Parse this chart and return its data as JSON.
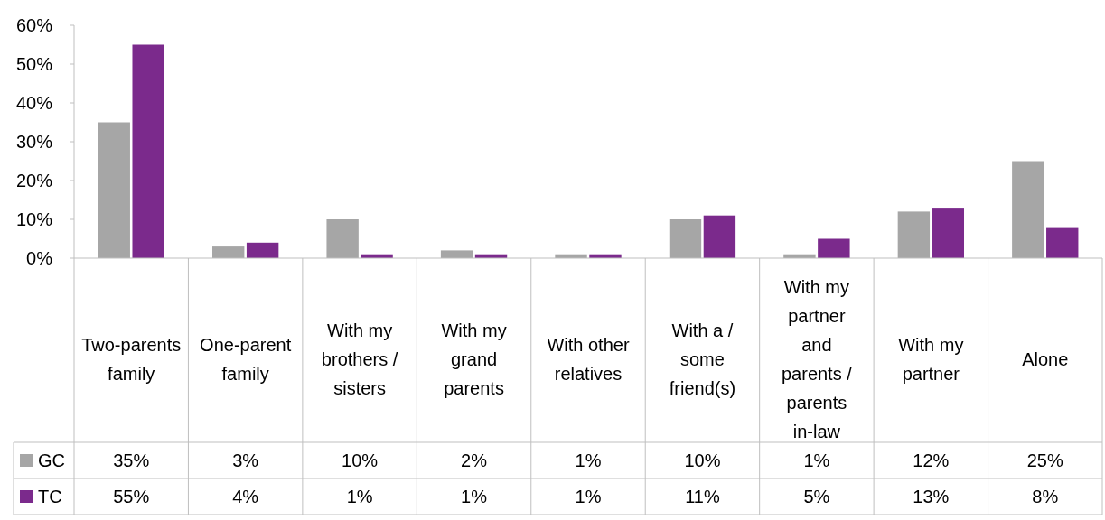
{
  "chart_data": {
    "type": "bar",
    "categories": [
      "Two-parents family",
      "One-parent family",
      "With my brothers / sisters",
      "With my grand parents",
      "With other relatives",
      "With a / some friend(s)",
      "With my partner and parents / parents in-law",
      "With my partner",
      "Alone"
    ],
    "series": [
      {
        "name": "GC",
        "color": "#a6a6a6",
        "values": [
          35,
          3,
          10,
          2,
          1,
          10,
          1,
          12,
          25
        ],
        "value_labels": [
          "35%",
          "3%",
          "10%",
          "2%",
          "1%",
          "10%",
          "1%",
          "12%",
          "25%"
        ]
      },
      {
        "name": "TC",
        "color": "#7b2a8c",
        "values": [
          55,
          4,
          1,
          1,
          1,
          11,
          5,
          13,
          8
        ],
        "value_labels": [
          "55%",
          "4%",
          "1%",
          "1%",
          "1%",
          "11%",
          "5%",
          "13%",
          "8%"
        ]
      }
    ],
    "ylim": [
      0,
      60
    ],
    "yticks": [
      {
        "value": 0,
        "label": "0%"
      },
      {
        "value": 10,
        "label": "10%"
      },
      {
        "value": 20,
        "label": "20%"
      },
      {
        "value": 30,
        "label": "30%"
      },
      {
        "value": 40,
        "label": "40%"
      },
      {
        "value": 50,
        "label": "50%"
      },
      {
        "value": 60,
        "label": "60%"
      }
    ],
    "legend": "bottom"
  }
}
